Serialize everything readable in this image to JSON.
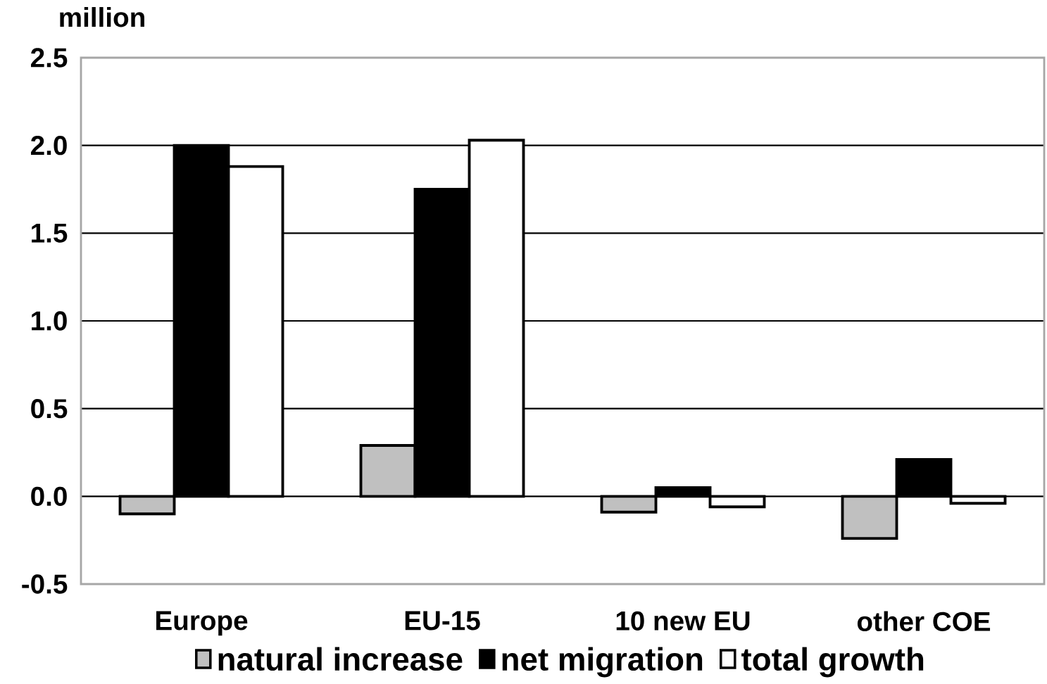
{
  "chart_data": {
    "type": "bar",
    "ylabel": "million",
    "categories": [
      "Europe",
      "EU-15",
      "10 new EU",
      "other COE"
    ],
    "series": [
      {
        "name": "natural increase",
        "color": "#c0c0c0",
        "values": [
          -0.1,
          0.29,
          -0.09,
          -0.24
        ]
      },
      {
        "name": "net migration",
        "color": "#000000",
        "values": [
          2.0,
          1.75,
          0.05,
          0.21
        ]
      },
      {
        "name": "total growth",
        "color": "#ffffff",
        "values": [
          1.88,
          2.03,
          -0.06,
          -0.04
        ]
      }
    ],
    "ylim": [
      -0.5,
      2.5
    ],
    "yticks": [
      {
        "value": -0.5,
        "label": "-0.5"
      },
      {
        "value": 0,
        "label": "0.0"
      },
      {
        "value": 0.5,
        "label": "0.5"
      },
      {
        "value": 1,
        "label": "1.0"
      },
      {
        "value": 1.5,
        "label": "1.5"
      },
      {
        "value": 2,
        "label": "2.0"
      },
      {
        "value": 2.5,
        "label": "2.5"
      }
    ],
    "grid": "y",
    "legend": "bottom"
  }
}
